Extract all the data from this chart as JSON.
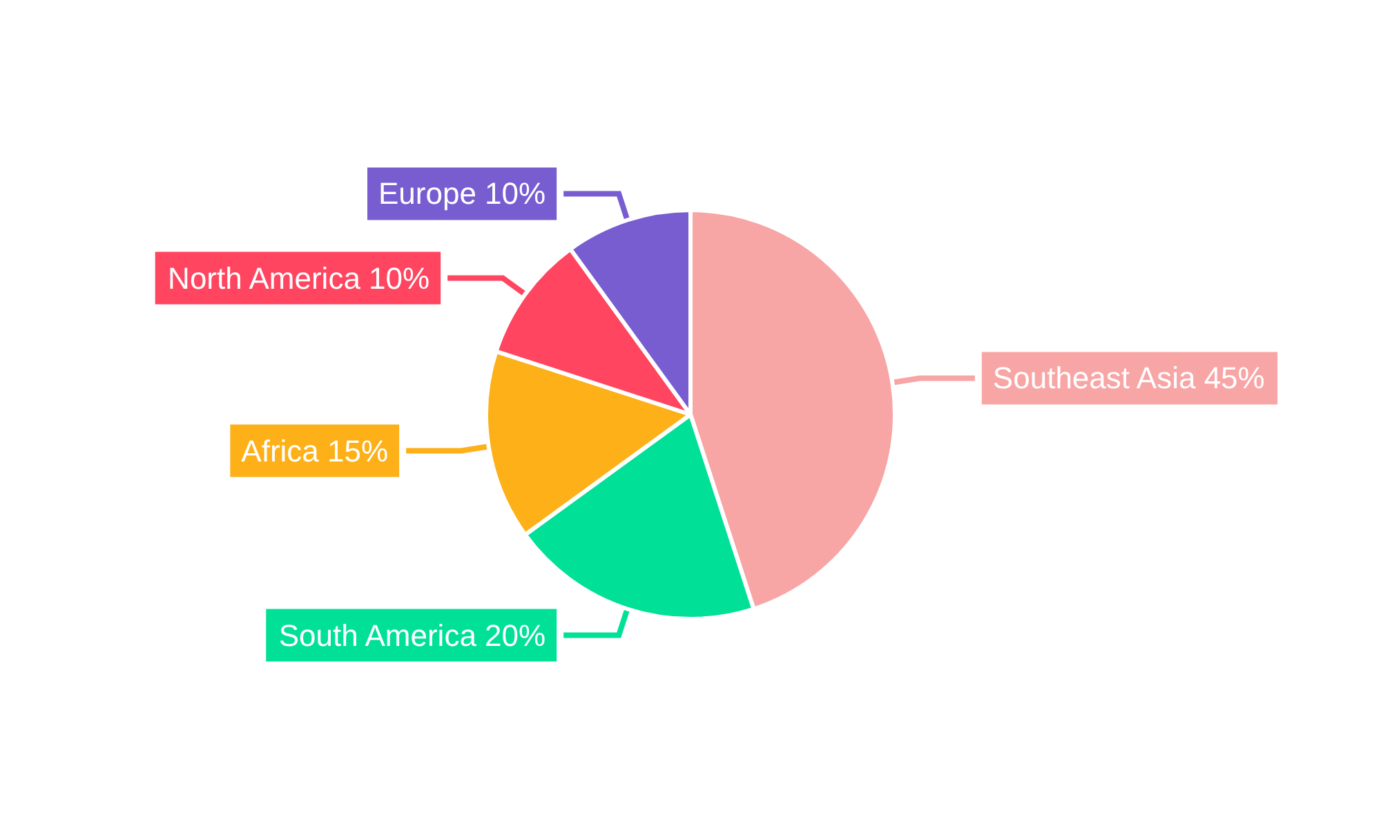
{
  "chart_data": {
    "type": "pie",
    "categories": [
      "Southeast Asia",
      "South America",
      "Africa",
      "North America",
      "Europe"
    ],
    "values": [
      45,
      20,
      15,
      10,
      10
    ],
    "colors": [
      "#f8a5a5",
      "#00e096",
      "#fdb018",
      "#ff4560",
      "#775dd0"
    ],
    "value_labels": [
      "45%",
      "20%",
      "15%",
      "10%",
      "10%"
    ],
    "legend": false
  }
}
